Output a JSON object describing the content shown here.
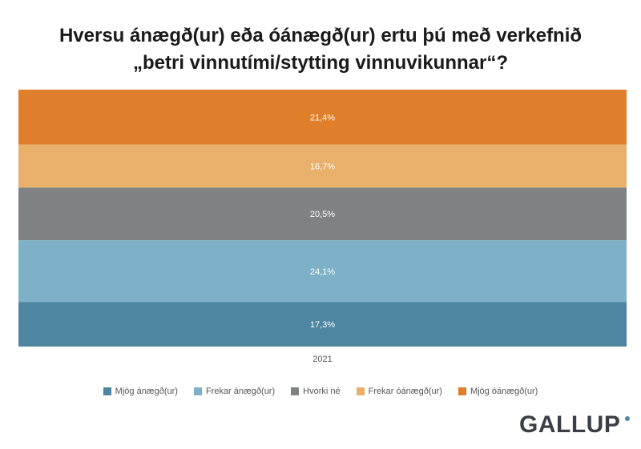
{
  "chart_data": {
    "type": "bar",
    "stacked": true,
    "orientation": "vertical",
    "title_line1": "Hversu ánægð(ur) eða óánægð(ur) ertu þú með verkefnið",
    "title_line2": "„betri vinnutími/stytting vinnuvikunnar“?",
    "categories": [
      "2021"
    ],
    "series": [
      {
        "name": "Mjög ánægð(ur)",
        "values": [
          17.3
        ],
        "label": "17,3%",
        "color": "#4e85a0"
      },
      {
        "name": "Frekar ánægð(ur)",
        "values": [
          24.1
        ],
        "label": "24,1%",
        "color": "#7eb0c8"
      },
      {
        "name": "Hvorki né",
        "values": [
          20.5
        ],
        "label": "20,5%",
        "color": "#7f8283"
      },
      {
        "name": "Frekar óánægð(ur)",
        "values": [
          16.7
        ],
        "label": "16,7%",
        "color": "#e8b06a"
      },
      {
        "name": "Mjög óánægð(ur)",
        "values": [
          21.4
        ],
        "label": "21,4%",
        "color": "#e07f2b"
      }
    ],
    "ylim": [
      0,
      100
    ],
    "legend_position": "bottom",
    "grid": false
  },
  "logo": {
    "text": "GALLUP"
  }
}
